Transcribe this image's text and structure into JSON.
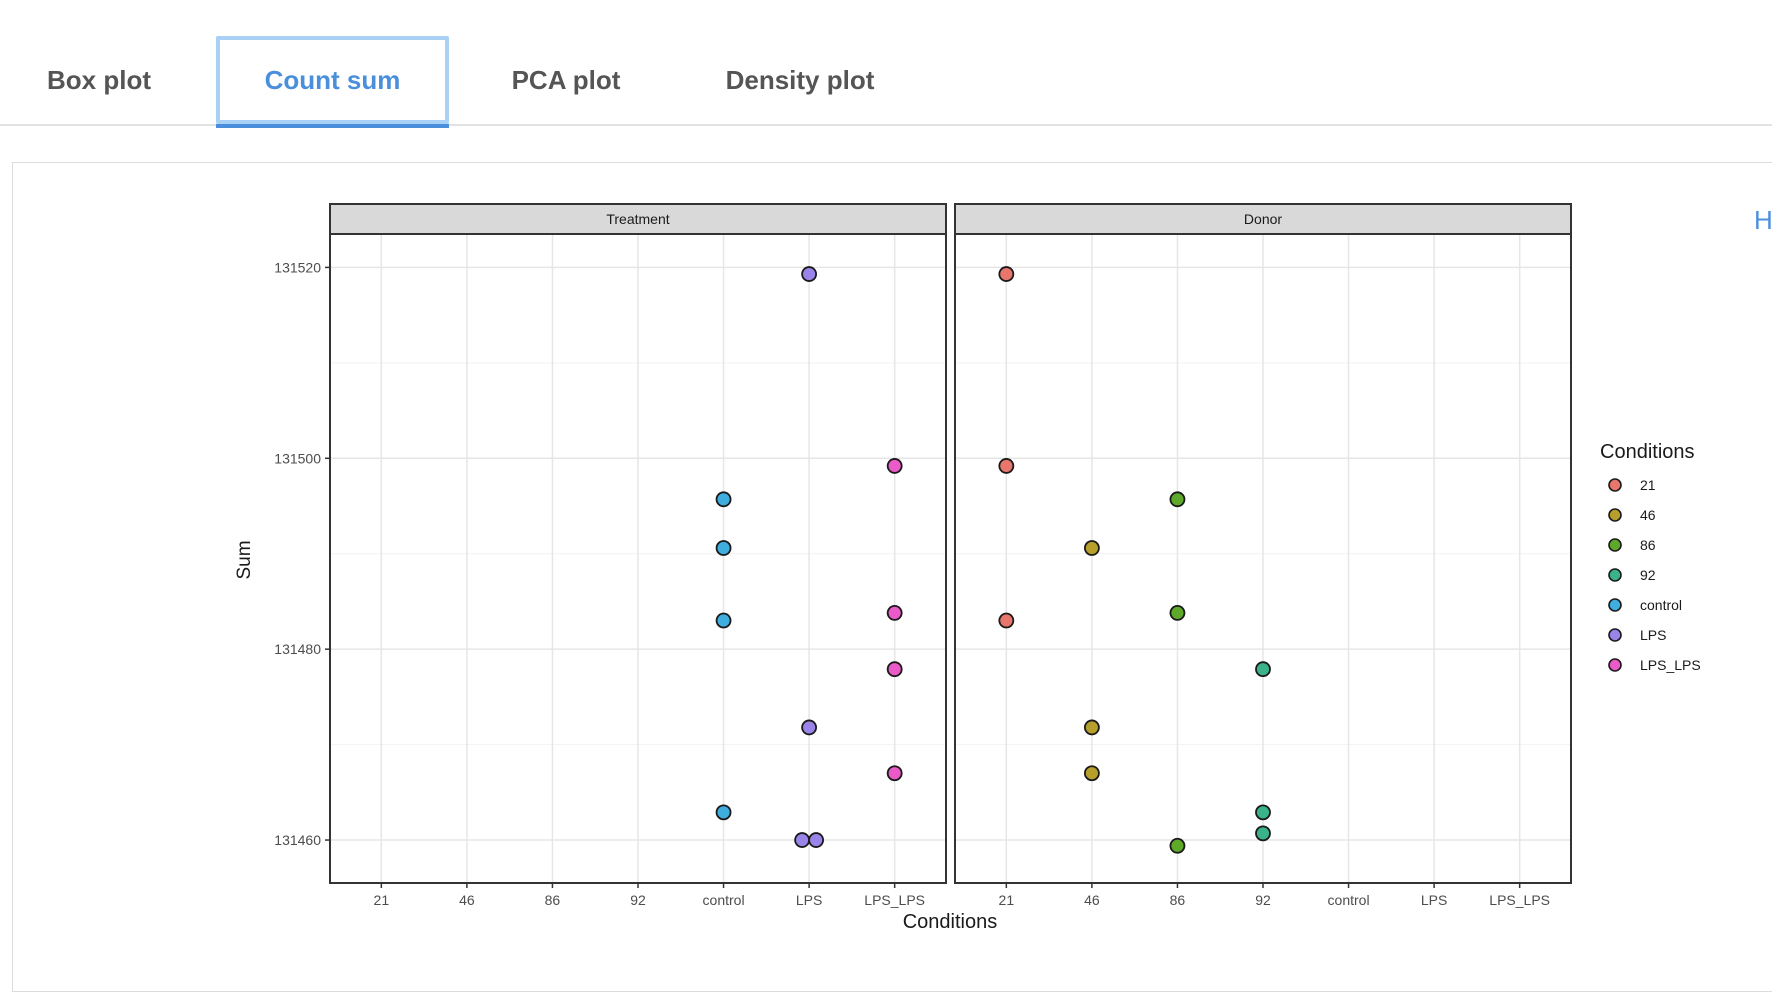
{
  "tabs": [
    {
      "label": "Box plot",
      "active": false
    },
    {
      "label": "Count sum",
      "active": true
    },
    {
      "label": "PCA plot",
      "active": false
    },
    {
      "label": "Density plot",
      "active": false
    }
  ],
  "help_link": {
    "label": "H"
  },
  "chart_data": {
    "type": "scatter",
    "xlabel": "Conditions",
    "ylabel": "Sum",
    "categories": [
      "21",
      "46",
      "86",
      "92",
      "control",
      "LPS",
      "LPS_LPS"
    ],
    "yticks": [
      131460,
      131480,
      131500,
      131520
    ],
    "ylim": [
      131455.5,
      131523.5
    ],
    "grid": true,
    "legend": {
      "title": "Conditions",
      "placement": "right",
      "entries": [
        "21",
        "46",
        "86",
        "92",
        "control",
        "LPS",
        "LPS_LPS"
      ]
    },
    "colors": {
      "21": "#e8766d",
      "46": "#b79f2b",
      "86": "#5ea929",
      "92": "#3bb38a",
      "control": "#3faedf",
      "LPS": "#9a84ea",
      "LPS_LPS": "#ea5ac8"
    },
    "facets": [
      {
        "title": "Treatment",
        "points": [
          {
            "x": "LPS",
            "y": 131519.3,
            "group": "LPS"
          },
          {
            "x": "LPS_LPS",
            "y": 131499.2,
            "group": "LPS_LPS"
          },
          {
            "x": "control",
            "y": 131495.7,
            "group": "control"
          },
          {
            "x": "control",
            "y": 131490.6,
            "group": "control"
          },
          {
            "x": "control",
            "y": 131483.0,
            "group": "control"
          },
          {
            "x": "LPS_LPS",
            "y": 131483.8,
            "group": "LPS_LPS"
          },
          {
            "x": "LPS_LPS",
            "y": 131477.9,
            "group": "LPS_LPS"
          },
          {
            "x": "LPS",
            "y": 131471.8,
            "group": "LPS"
          },
          {
            "x": "LPS_LPS",
            "y": 131467.0,
            "group": "LPS_LPS"
          },
          {
            "x": "control",
            "y": 131462.9,
            "group": "control"
          },
          {
            "x": "LPS",
            "y": 131460.0,
            "group": "LPS",
            "dodge": -1
          },
          {
            "x": "LPS",
            "y": 131460.0,
            "group": "LPS",
            "dodge": 1
          }
        ]
      },
      {
        "title": "Donor",
        "points": [
          {
            "x": "21",
            "y": 131519.3,
            "group": "21"
          },
          {
            "x": "21",
            "y": 131499.2,
            "group": "21"
          },
          {
            "x": "86",
            "y": 131495.7,
            "group": "86"
          },
          {
            "x": "46",
            "y": 131490.6,
            "group": "46"
          },
          {
            "x": "21",
            "y": 131483.0,
            "group": "21"
          },
          {
            "x": "86",
            "y": 131483.8,
            "group": "86"
          },
          {
            "x": "92",
            "y": 131477.9,
            "group": "92"
          },
          {
            "x": "46",
            "y": 131471.8,
            "group": "46"
          },
          {
            "x": "46",
            "y": 131467.0,
            "group": "46"
          },
          {
            "x": "92",
            "y": 131462.9,
            "group": "92"
          },
          {
            "x": "92",
            "y": 131460.7,
            "group": "92"
          },
          {
            "x": "86",
            "y": 131459.4,
            "group": "86"
          }
        ]
      }
    ]
  }
}
